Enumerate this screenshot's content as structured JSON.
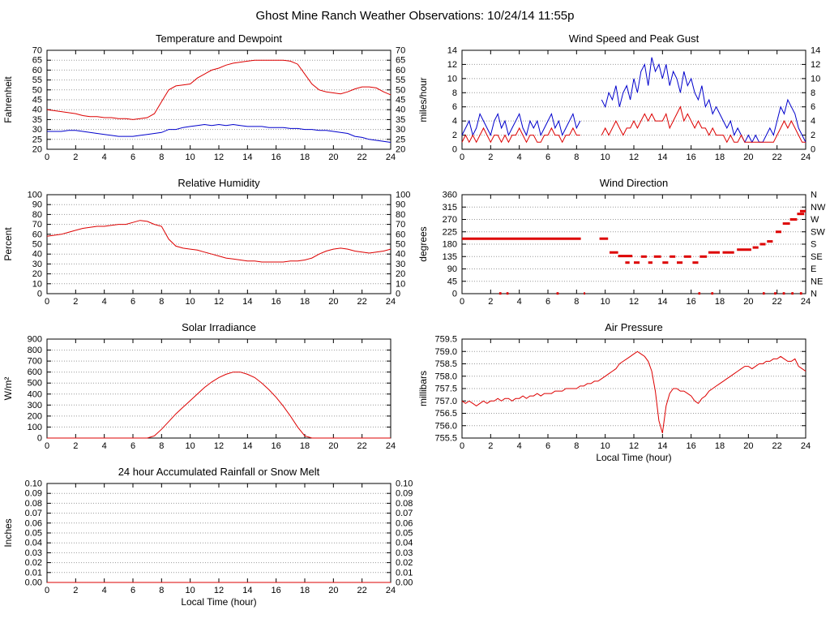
{
  "page_title": "Ghost Mine Ranch Weather Observations: 10/24/14 11:55p",
  "colors": {
    "series_red": "#dd0000",
    "series_blue": "#0000cc",
    "grid": "#999999",
    "frame": "#000000"
  },
  "chart_data": [
    {
      "type": "line",
      "title": "Temperature and Dewpoint",
      "ylabel": "Fahrenheit",
      "xlabel": "",
      "x_range": [
        0,
        24
      ],
      "x_tick_step": 2,
      "y_range": [
        20,
        70
      ],
      "y_tick_step": 5,
      "y_decimals": 0,
      "right_axis": "mirror",
      "grid": true,
      "legend": "none",
      "series": [
        {
          "name": "temperature",
          "color": "#dd0000",
          "x_start": 0,
          "x_step": 0.5,
          "y": [
            40,
            39.5,
            39,
            38.5,
            38,
            37,
            36.5,
            36.5,
            36,
            36,
            35.5,
            35.5,
            35,
            35.5,
            36,
            38,
            44,
            50,
            52,
            52.5,
            53,
            56,
            58,
            60,
            61,
            62.5,
            63.5,
            64,
            64.5,
            65,
            65,
            65,
            65,
            65,
            64.5,
            63,
            58,
            53,
            50,
            49,
            48.5,
            48,
            49,
            50.5,
            51.5,
            51.5,
            51,
            49,
            47.5
          ]
        },
        {
          "name": "dewpoint",
          "color": "#0000cc",
          "x_start": 0,
          "x_step": 0.5,
          "y": [
            29,
            29,
            29,
            29.5,
            29.5,
            29,
            28.5,
            28,
            27.5,
            27,
            26.5,
            26.5,
            26.5,
            27,
            27.5,
            28,
            28.5,
            30,
            30,
            31,
            31.5,
            32,
            32.5,
            32,
            32.5,
            32,
            32.5,
            32,
            31.5,
            31.5,
            31.5,
            31,
            31,
            31,
            30.5,
            30.5,
            30,
            30,
            29.5,
            29.5,
            29,
            28.5,
            28,
            26.5,
            26,
            25,
            24.5,
            24,
            23.5
          ]
        }
      ]
    },
    {
      "type": "line",
      "title": "Wind Speed and Peak Gust",
      "ylabel": "miles/hour",
      "xlabel": "",
      "x_range": [
        0,
        24
      ],
      "x_tick_step": 2,
      "y_range": [
        0,
        14
      ],
      "y_tick_step": 2,
      "y_decimals": 0,
      "right_axis": "mirror",
      "grid": true,
      "legend": "none",
      "series": [
        {
          "name": "peak-gust",
          "color": "#0000cc",
          "x_start": 0,
          "x_step": 0.25,
          "y": [
            2,
            3,
            4,
            2,
            3,
            5,
            4,
            3,
            2,
            4,
            5,
            3,
            4,
            2,
            3,
            4,
            5,
            3,
            2,
            4,
            3,
            4,
            2,
            3,
            4,
            5,
            3,
            4,
            2,
            3,
            4,
            5,
            3,
            4,
            null,
            null,
            null,
            null,
            null,
            7,
            6,
            8,
            7,
            9,
            6,
            8,
            9,
            7,
            10,
            8,
            11,
            12,
            9,
            13,
            11,
            12,
            10,
            12,
            9,
            11,
            10,
            8,
            11,
            9,
            10,
            8,
            7,
            9,
            6,
            7,
            5,
            6,
            5,
            4,
            3,
            4,
            2,
            3,
            2,
            1,
            2,
            1,
            2,
            1,
            1,
            2,
            3,
            2,
            4,
            6,
            5,
            7,
            6,
            5,
            3,
            2,
            1
          ]
        },
        {
          "name": "wind-speed",
          "color": "#dd0000",
          "x_start": 0,
          "x_step": 0.25,
          "y": [
            1,
            2,
            1,
            2,
            1,
            2,
            3,
            2,
            1,
            2,
            2,
            1,
            2,
            1,
            2,
            2,
            3,
            2,
            1,
            2,
            2,
            1,
            1,
            2,
            2,
            3,
            2,
            2,
            1,
            2,
            2,
            3,
            2,
            2,
            null,
            null,
            null,
            null,
            null,
            2,
            3,
            2,
            3,
            4,
            3,
            2,
            3,
            3,
            4,
            3,
            4,
            5,
            4,
            5,
            4,
            4,
            4,
            5,
            3,
            4,
            5,
            6,
            4,
            5,
            4,
            3,
            4,
            3,
            3,
            2,
            3,
            2,
            2,
            2,
            1,
            2,
            1,
            1,
            2,
            1,
            1,
            1,
            1,
            1,
            1,
            1,
            1,
            1,
            2,
            3,
            4,
            3,
            4,
            3,
            2,
            1,
            1
          ]
        }
      ]
    },
    {
      "type": "line",
      "title": "Relative Humidity",
      "ylabel": "Percent",
      "xlabel": "",
      "x_range": [
        0,
        24
      ],
      "x_tick_step": 2,
      "y_range": [
        0,
        100
      ],
      "y_tick_step": 10,
      "y_decimals": 0,
      "right_axis": "mirror",
      "grid": true,
      "legend": "none",
      "series": [
        {
          "name": "relative-humidity",
          "color": "#dd0000",
          "x_start": 0,
          "x_step": 0.5,
          "y": [
            58,
            59,
            60,
            62,
            64,
            66,
            67,
            68,
            68,
            69,
            70,
            70,
            72,
            74,
            73,
            70,
            68,
            55,
            48,
            46,
            45,
            44,
            42,
            40,
            38,
            36,
            35,
            34,
            33,
            33,
            32,
            32,
            32,
            32,
            33,
            33,
            34,
            36,
            40,
            43,
            45,
            46,
            45,
            43,
            42,
            41,
            42,
            43,
            45
          ]
        }
      ]
    },
    {
      "type": "scatter",
      "title": "Wind Direction",
      "ylabel": "degrees",
      "xlabel": "",
      "x_range": [
        0,
        24
      ],
      "x_tick_step": 2,
      "y_range": [
        0,
        360
      ],
      "y_tick_step": 45,
      "y_decimals": 0,
      "right_axis": [
        "N",
        "NE",
        "E",
        "SE",
        "S",
        "SW",
        "W",
        "NW",
        "N"
      ],
      "grid": true,
      "legend": "none",
      "series": [
        {
          "name": "wind-direction",
          "color": "#dd0000",
          "segments": [
            [
              0,
              8.3,
              200
            ],
            [
              9.6,
              10.2,
              200
            ],
            [
              10.3,
              10.9,
              150
            ],
            [
              10.9,
              11.9,
              137
            ],
            [
              11.4,
              11.7,
              113
            ],
            [
              12.0,
              12.4,
              113
            ],
            [
              12.5,
              12.9,
              135
            ],
            [
              13.0,
              13.3,
              113
            ],
            [
              13.4,
              13.9,
              135
            ],
            [
              14.0,
              14.4,
              113
            ],
            [
              14.5,
              14.9,
              135
            ],
            [
              15.0,
              15.4,
              113
            ],
            [
              15.5,
              16.0,
              135
            ],
            [
              16.1,
              16.5,
              113
            ],
            [
              16.6,
              17.1,
              135
            ],
            [
              17.2,
              18.0,
              150
            ],
            [
              18.2,
              19.0,
              150
            ],
            [
              19.2,
              20.2,
              160
            ],
            [
              20.3,
              20.7,
              168
            ],
            [
              20.8,
              21.2,
              180
            ],
            [
              21.3,
              21.7,
              190
            ],
            [
              21.9,
              22.3,
              225
            ],
            [
              22.4,
              22.9,
              255
            ],
            [
              22.9,
              23.4,
              270
            ],
            [
              23.4,
              23.9,
              290
            ],
            [
              23.6,
              24.0,
              300
            ],
            [
              2.6,
              2.75,
              1
            ],
            [
              3.1,
              3.25,
              1
            ],
            [
              6.6,
              6.75,
              1
            ],
            [
              8.5,
              8.6,
              1
            ],
            [
              16.5,
              16.65,
              1
            ],
            [
              17.4,
              17.55,
              1
            ],
            [
              21.0,
              21.15,
              1
            ],
            [
              21.8,
              21.95,
              1
            ],
            [
              22.4,
              22.55,
              1
            ],
            [
              23.0,
              23.15,
              1
            ],
            [
              23.6,
              23.75,
              1
            ]
          ]
        }
      ]
    },
    {
      "type": "line",
      "title": "Solar Irradiance",
      "ylabel": "W/m²",
      "xlabel": "",
      "x_range": [
        0,
        24
      ],
      "x_tick_step": 2,
      "y_range": [
        0,
        900
      ],
      "y_tick_step": 100,
      "y_decimals": 0,
      "right_axis": "none",
      "grid": true,
      "legend": "none",
      "series": [
        {
          "name": "solar-irradiance",
          "color": "#dd0000",
          "x_start": 0,
          "x_step": 0.5,
          "y": [
            0,
            0,
            0,
            0,
            0,
            0,
            0,
            0,
            0,
            0,
            0,
            0,
            0,
            0,
            0,
            20,
            80,
            150,
            220,
            280,
            340,
            400,
            460,
            510,
            550,
            580,
            600,
            600,
            580,
            550,
            500,
            440,
            370,
            290,
            200,
            100,
            20,
            0,
            0,
            0,
            0,
            0,
            0,
            0,
            0,
            0,
            0,
            0,
            0
          ]
        }
      ]
    },
    {
      "type": "line",
      "title": "Air Pressure",
      "ylabel": "millibars",
      "xlabel": "Local Time (hour)",
      "x_range": [
        0,
        24
      ],
      "x_tick_step": 2,
      "y_range": [
        755.5,
        759.5
      ],
      "y_tick_step": 0.5,
      "y_decimals": 1,
      "right_axis": "none",
      "grid": true,
      "legend": "none",
      "series": [
        {
          "name": "air-pressure",
          "color": "#dd0000",
          "x_start": 0,
          "x_step": 0.25,
          "y": [
            757.0,
            756.9,
            757.0,
            756.9,
            756.8,
            756.9,
            757.0,
            756.9,
            757.0,
            757.0,
            757.1,
            757.0,
            757.1,
            757.1,
            757.0,
            757.1,
            757.1,
            757.2,
            757.1,
            757.2,
            757.2,
            757.3,
            757.2,
            757.3,
            757.3,
            757.3,
            757.4,
            757.4,
            757.4,
            757.5,
            757.5,
            757.5,
            757.5,
            757.6,
            757.6,
            757.7,
            757.7,
            757.8,
            757.8,
            757.9,
            758.0,
            758.1,
            758.2,
            758.3,
            758.5,
            758.6,
            758.7,
            758.8,
            758.9,
            759.0,
            758.9,
            758.8,
            758.6,
            758.2,
            757.4,
            756.2,
            755.7,
            756.8,
            757.3,
            757.5,
            757.5,
            757.4,
            757.4,
            757.3,
            757.2,
            757.0,
            756.9,
            757.1,
            757.2,
            757.4,
            757.5,
            757.6,
            757.7,
            757.8,
            757.9,
            758.0,
            758.1,
            758.2,
            758.3,
            758.4,
            758.4,
            758.3,
            758.4,
            758.5,
            758.5,
            758.6,
            758.6,
            758.7,
            758.7,
            758.8,
            758.7,
            758.6,
            758.6,
            758.7,
            758.4,
            758.3,
            758.2
          ]
        }
      ]
    },
    {
      "type": "line",
      "title": "24 hour Accumulated Rainfall or Snow Melt",
      "ylabel": "Inches",
      "xlabel": "Local Time (hour)",
      "x_range": [
        0,
        24
      ],
      "x_tick_step": 2,
      "y_range": [
        0,
        0.1
      ],
      "y_tick_step": 0.01,
      "y_decimals": 2,
      "right_axis": "mirror",
      "grid": true,
      "legend": "none",
      "series": [
        {
          "name": "rainfall",
          "color": "#dd0000",
          "x_start": 0,
          "x_step": 24,
          "y": [
            0,
            0
          ]
        }
      ]
    }
  ]
}
